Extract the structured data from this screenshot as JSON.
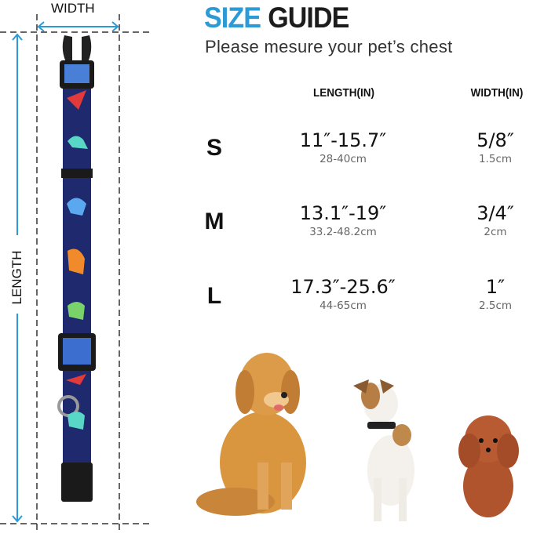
{
  "header": {
    "title_accent": "SIZE",
    "title_rest": "GUIDE",
    "subtitle": "Please mesure your pet’s chest"
  },
  "diagram": {
    "width_label": "WIDTH",
    "length_label": "LENGTH",
    "arrow_color": "#2b9ad5",
    "strap_color": "#1f2a6e"
  },
  "table": {
    "columns": [
      "LENGTH(IN)",
      "WIDTH(IN)"
    ],
    "rows": [
      {
        "size": "S",
        "length_in": "11″-15.7″",
        "length_cm": "28-40cm",
        "width_in": "5/8″",
        "width_cm": "1.5cm"
      },
      {
        "size": "M",
        "length_in": "13.1″-19″",
        "length_cm": "33.2-48.2cm",
        "width_in": "3/4″",
        "width_cm": "2cm"
      },
      {
        "size": "L",
        "length_in": "17.3″-25.6″",
        "length_cm": "44-65cm",
        "width_in": "1″",
        "width_cm": "2.5cm"
      }
    ]
  },
  "images": [
    "golden-retriever",
    "jack-russell-terrier",
    "toy-poodle",
    "dinosaur-pattern-collar"
  ]
}
